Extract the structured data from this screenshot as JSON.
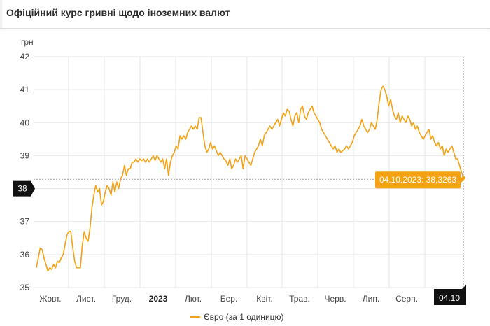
{
  "header": {
    "title": "Офіційний курс гривні щодо іноземних валют"
  },
  "chart_data": {
    "type": "line",
    "ylabel": "грн",
    "ylim": [
      35,
      42
    ],
    "yticks": [
      35,
      36,
      37,
      38,
      39,
      40,
      41,
      42
    ],
    "xlabels": [
      {
        "label": "Жовт.",
        "bold": false
      },
      {
        "label": "Лист.",
        "bold": false
      },
      {
        "label": "Груд.",
        "bold": false
      },
      {
        "label": "2023",
        "bold": true
      },
      {
        "label": "Лют.",
        "bold": false
      },
      {
        "label": "Бер.",
        "bold": false
      },
      {
        "label": "Квіт.",
        "bold": false
      },
      {
        "label": "Трав.",
        "bold": false
      },
      {
        "label": "Черв.",
        "bold": false
      },
      {
        "label": "Лип.",
        "bold": false
      },
      {
        "label": "Серп.",
        "bold": false
      }
    ],
    "crosshair": {
      "y_value": 38,
      "y_label": "38",
      "x_label": "04.10"
    },
    "tooltip": {
      "text": "04.10.2023: 38,3263",
      "value": 38.3263
    },
    "series": [
      {
        "name": "Євро (за 1 одиницю)",
        "color": "#f5a114",
        "values": [
          35.6,
          35.9,
          36.2,
          36.15,
          35.9,
          35.7,
          35.5,
          35.6,
          35.55,
          35.7,
          35.6,
          35.8,
          35.75,
          35.9,
          36.0,
          36.3,
          36.6,
          36.7,
          36.7,
          36.2,
          35.8,
          35.6,
          35.6,
          35.6,
          36.3,
          36.7,
          36.5,
          36.4,
          36.8,
          37.4,
          37.8,
          38.1,
          37.9,
          38.0,
          37.5,
          37.6,
          37.9,
          38.1,
          38.0,
          37.8,
          38.2,
          37.9,
          38.2,
          38.0,
          38.3,
          38.4,
          38.7,
          38.4,
          38.6,
          38.6,
          38.8,
          38.8,
          38.9,
          38.8,
          38.9,
          38.85,
          38.9,
          38.8,
          38.9,
          38.8,
          38.9,
          39.0,
          38.85,
          39.0,
          38.9,
          38.8,
          38.9,
          38.6,
          38.9,
          38.4,
          38.8,
          39.0,
          39.1,
          39.3,
          39.2,
          39.6,
          39.5,
          39.6,
          39.5,
          39.7,
          39.8,
          39.9,
          39.8,
          39.9,
          39.8,
          40.15,
          40.15,
          39.7,
          39.3,
          39.1,
          39.2,
          39.4,
          39.2,
          39.3,
          39.15,
          39.0,
          39.1,
          39.0,
          38.9,
          38.85,
          38.7,
          38.9,
          38.6,
          38.7,
          38.9,
          38.8,
          38.9,
          39.0,
          38.6,
          39.0,
          38.9,
          38.8,
          38.7,
          38.9,
          39.1,
          39.2,
          39.3,
          39.5,
          39.3,
          39.6,
          39.7,
          39.8,
          39.9,
          39.8,
          39.9,
          40.0,
          40.1,
          39.9,
          40.1,
          40.3,
          40.2,
          40.4,
          40.35,
          40.1,
          39.9,
          40.2,
          40.3,
          40.0,
          40.4,
          40.5,
          40.2,
          40.1,
          40.3,
          40.4,
          40.5,
          40.3,
          40.2,
          40.1,
          40.0,
          39.8,
          39.7,
          39.6,
          39.5,
          39.4,
          39.3,
          39.2,
          39.3,
          39.1,
          39.2,
          39.1,
          39.15,
          39.2,
          39.3,
          39.2,
          39.3,
          39.4,
          39.6,
          39.7,
          39.8,
          39.9,
          40.1,
          39.9,
          39.8,
          39.7,
          39.8,
          40.0,
          39.9,
          39.8,
          40.1,
          40.6,
          41.0,
          41.1,
          41.0,
          40.8,
          40.5,
          40.7,
          40.4,
          40.2,
          40.1,
          40.3,
          40.0,
          40.2,
          40.1,
          40.0,
          40.2,
          40.1,
          39.9,
          40.0,
          39.8,
          39.9,
          39.7,
          39.6,
          39.5,
          39.6,
          39.7,
          39.8,
          39.5,
          39.6,
          39.4,
          39.3,
          39.4,
          39.2,
          39.3,
          39.0,
          39.2,
          39.1,
          39.2,
          39.3,
          39.1,
          38.9,
          38.9,
          38.7,
          38.5,
          38.3263
        ]
      }
    ]
  },
  "legend": {
    "label": "Євро (за 1 одиницю)"
  }
}
